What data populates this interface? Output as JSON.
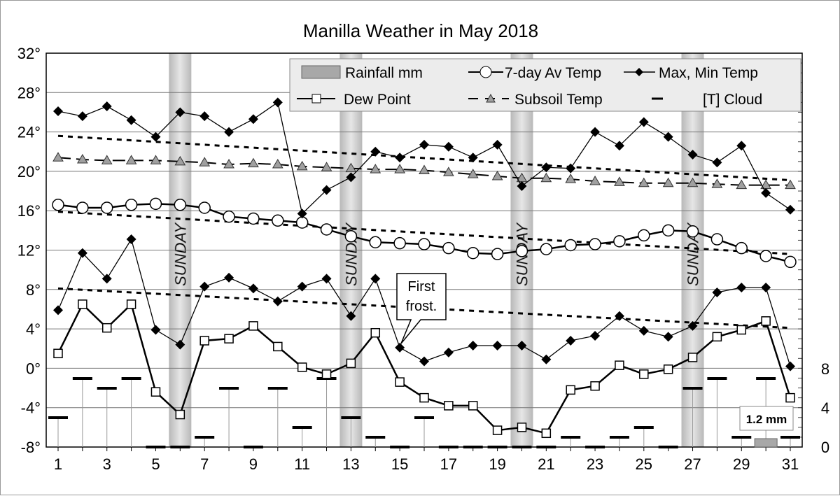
{
  "chart_data": {
    "type": "line",
    "title": "Manilla Weather in May 2018",
    "x": [
      1,
      2,
      3,
      4,
      5,
      6,
      7,
      8,
      9,
      10,
      11,
      12,
      13,
      14,
      15,
      16,
      17,
      18,
      19,
      20,
      21,
      22,
      23,
      24,
      25,
      26,
      27,
      28,
      29,
      30,
      31
    ],
    "x_tick_labels": [
      "1",
      "3",
      "5",
      "7",
      "9",
      "11",
      "13",
      "15",
      "17",
      "19",
      "21",
      "23",
      "25",
      "27",
      "29",
      "31"
    ],
    "ylim": [
      -8,
      32
    ],
    "y_tick_labels": [
      "32°",
      "28°",
      "24°",
      "20°",
      "16°",
      "12°",
      "8°",
      "4°",
      "0°",
      "-4°",
      "-8°"
    ],
    "y2lim": [
      0,
      8
    ],
    "y2_tick_labels": [
      "8",
      "4",
      "0"
    ],
    "grid": true,
    "legend_position": "top-right",
    "legend": [
      "Rainfall mm",
      "7-day Av Temp",
      "Max, Min Temp",
      "Dew Point",
      "Subsoil Temp",
      "[T] Cloud"
    ],
    "sundays": [
      6,
      13,
      20,
      27
    ],
    "sunday_label": "SUNDAY",
    "series": [
      {
        "name": "Max, Min Temp",
        "role": "max",
        "values": [
          26.1,
          25.6,
          26.6,
          25.2,
          23.5,
          26.0,
          25.6,
          24.0,
          25.3,
          27.0,
          15.7,
          18.1,
          19.4,
          22.0,
          21.4,
          22.7,
          22.5,
          21.4,
          22.7,
          18.5,
          20.4,
          20.3,
          24.0,
          22.6,
          25.0,
          23.5,
          21.7,
          20.9,
          22.6,
          17.8,
          16.1
        ]
      },
      {
        "name": "Max, Min Temp",
        "role": "min",
        "values": [
          5.9,
          11.7,
          9.1,
          13.1,
          3.9,
          2.4,
          8.3,
          9.2,
          8.1,
          6.8,
          8.3,
          9.1,
          5.3,
          9.1,
          2.1,
          0.7,
          1.6,
          2.3,
          2.3,
          2.3,
          0.9,
          2.8,
          3.3,
          5.3,
          3.8,
          3.2,
          4.3,
          7.7,
          8.2,
          8.2,
          0.2
        ]
      },
      {
        "name": "Dew Point",
        "values": [
          1.5,
          6.5,
          4.1,
          6.5,
          -2.4,
          -4.7,
          2.8,
          3.0,
          4.3,
          2.2,
          0.1,
          -0.6,
          0.5,
          3.6,
          -1.4,
          -3.0,
          -3.8,
          -3.8,
          -6.3,
          -6.0,
          -6.6,
          -2.2,
          -1.8,
          0.3,
          -0.6,
          -0.1,
          1.1,
          3.2,
          3.9,
          4.8,
          -3.0
        ]
      },
      {
        "name": "7-day Av Temp",
        "values": [
          16.6,
          16.3,
          16.3,
          16.6,
          16.7,
          16.6,
          16.3,
          15.4,
          15.2,
          15.0,
          14.8,
          14.1,
          13.4,
          12.8,
          12.7,
          12.6,
          12.2,
          11.7,
          11.6,
          11.9,
          12.1,
          12.5,
          12.6,
          12.9,
          13.5,
          14.0,
          13.9,
          13.1,
          12.2,
          11.4,
          10.8
        ]
      },
      {
        "name": "Subsoil Temp",
        "values": [
          21.4,
          21.2,
          21.1,
          21.1,
          21.1,
          21.0,
          20.9,
          20.7,
          20.8,
          20.7,
          20.5,
          20.4,
          20.3,
          20.2,
          20.2,
          20.1,
          19.9,
          19.7,
          19.5,
          19.3,
          19.3,
          19.2,
          19.0,
          18.9,
          18.8,
          18.8,
          18.8,
          18.7,
          18.6,
          18.6,
          18.6
        ]
      },
      {
        "role": "dotted-upper",
        "values_start_end": [
          23.6,
          19.1
        ]
      },
      {
        "role": "dotted-middle",
        "values_start_end": [
          15.9,
          11.6
        ]
      },
      {
        "role": "dotted-lower",
        "values_start_end": [
          8.1,
          4.1
        ]
      },
      {
        "name": "[T] Cloud",
        "axis": "right",
        "values": [
          3,
          7,
          6,
          7,
          0,
          0,
          1,
          6,
          0,
          6,
          2,
          7,
          3,
          1,
          0,
          3,
          0,
          0,
          0,
          0,
          0,
          1,
          0,
          1,
          2,
          0,
          6,
          7,
          1,
          7,
          1
        ]
      },
      {
        "name": "Rainfall mm",
        "axis": "right",
        "type": "bar",
        "values": {
          "30": 1.2
        }
      }
    ],
    "annotations": [
      {
        "text": "First frost.",
        "day": 15
      },
      {
        "text": "1.2 mm",
        "day": 30
      }
    ]
  },
  "colors": {
    "max_min": "#000000",
    "subsoil_marker": "#a0a0a0",
    "sunday_band": "#c8c8c8",
    "legend_bg": "#ececec",
    "rain": "#a8a8a8"
  }
}
